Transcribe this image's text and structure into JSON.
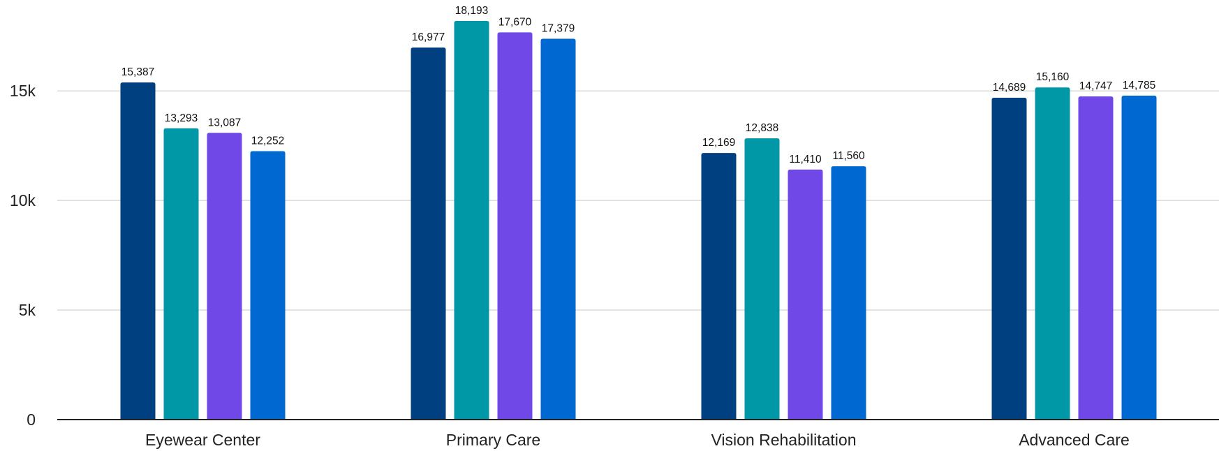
{
  "chart_data": {
    "type": "bar",
    "title": "",
    "xlabel": "",
    "ylabel": "",
    "categories": [
      "Eyewear Center",
      "Primary Care",
      "Vision Rehabilitation",
      "Advanced Care"
    ],
    "series": [
      {
        "color": "#003f80",
        "values": [
          15387,
          16977,
          12169,
          14689
        ]
      },
      {
        "color": "#0097a7",
        "values": [
          13293,
          18193,
          12838,
          15160
        ]
      },
      {
        "color": "#7048e8",
        "values": [
          13087,
          17670,
          11410,
          14747
        ]
      },
      {
        "color": "#0069d1",
        "values": [
          12252,
          17379,
          11560,
          14785
        ]
      }
    ],
    "data_labels": [
      [
        "15,387",
        "16,977",
        "12,169",
        "14,689"
      ],
      [
        "13,293",
        "18,193",
        "12,838",
        "15,160"
      ],
      [
        "13,087",
        "17,670",
        "11,410",
        "14,747"
      ],
      [
        "12,252",
        "17,379",
        "11,560",
        "14,785"
      ]
    ],
    "ylim": [
      0,
      18193
    ],
    "yticks": [
      0,
      5000,
      10000,
      15000
    ],
    "ytick_labels": [
      "0",
      "5k",
      "10k",
      "15k"
    ],
    "grid": true,
    "legend": "none"
  }
}
